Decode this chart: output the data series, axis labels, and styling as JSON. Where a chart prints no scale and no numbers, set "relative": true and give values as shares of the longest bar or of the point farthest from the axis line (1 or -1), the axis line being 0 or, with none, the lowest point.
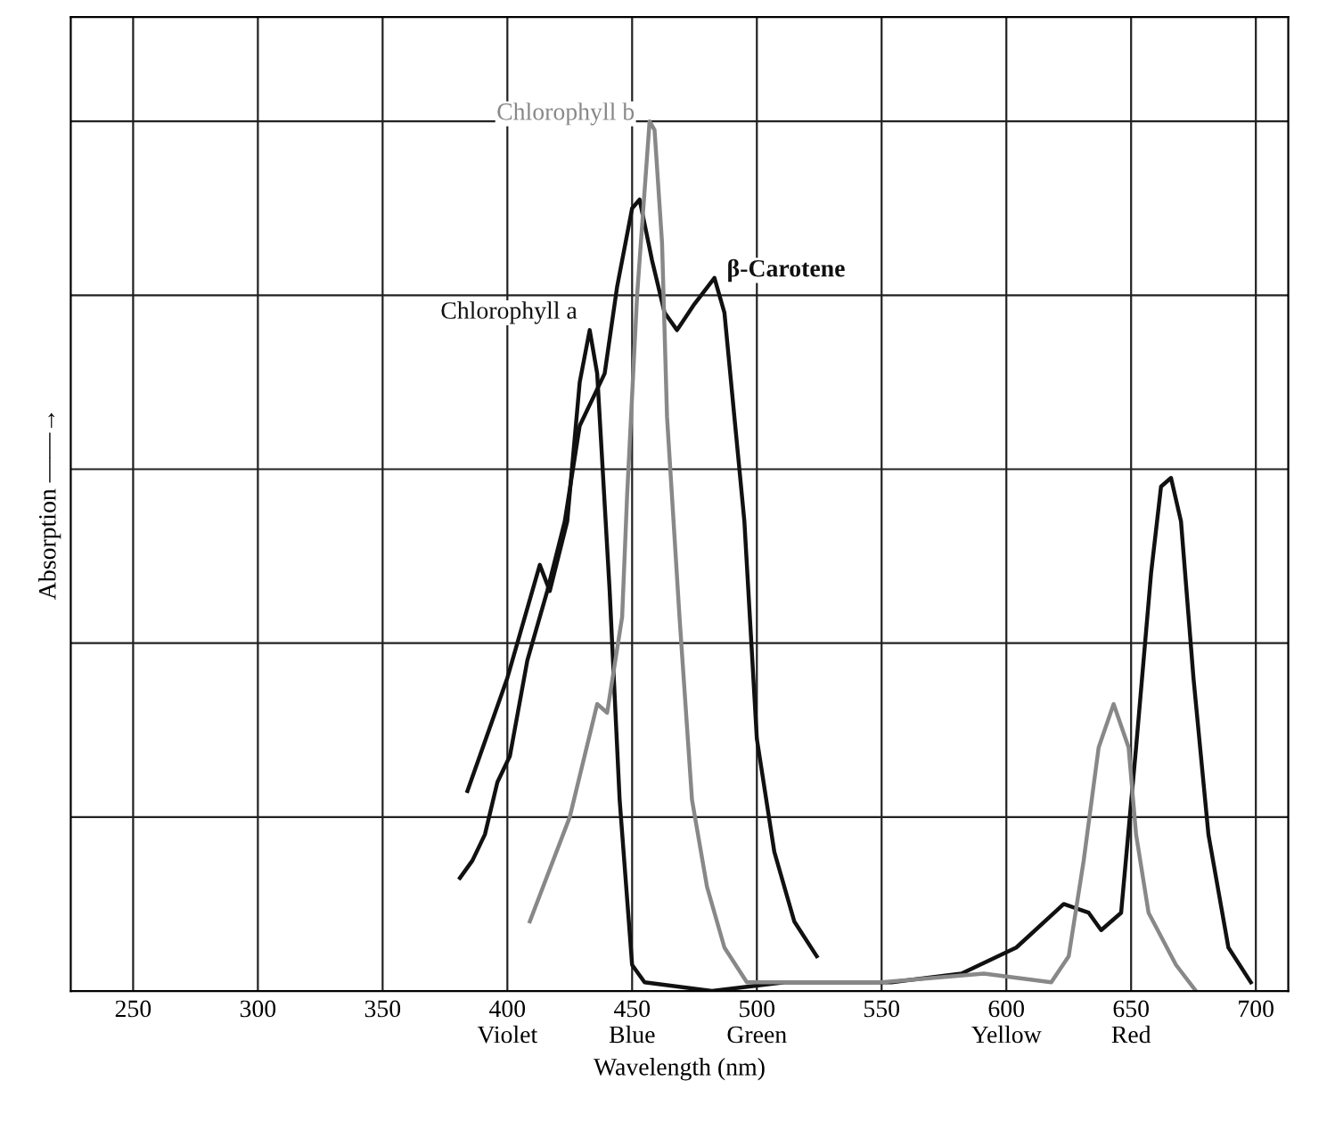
{
  "chart_data": {
    "type": "line",
    "relative": true,
    "xlabel": "Wavelength (nm)",
    "ylabel": "Absorption ——→",
    "xlim": [
      225,
      713
    ],
    "xticks": [
      250,
      300,
      350,
      {
        "value": 400,
        "label": "400\nViolet"
      },
      {
        "value": 450,
        "label": "450\nBlue"
      },
      {
        "value": 500,
        "label": "500\nGreen"
      },
      550,
      {
        "value": 600,
        "label": "600\nYellow"
      },
      {
        "value": 650,
        "label": "650\nRed"
      },
      700
    ],
    "grid": true,
    "legend": false,
    "tick_labels": "x",
    "line_style": "solid",
    "marker": "none",
    "series": [
      {
        "name": "Chlorophyll a",
        "color": "#111111",
        "x": [
          384,
          400,
          413,
          417,
          424,
          429,
          433,
          436,
          441,
          445,
          450,
          455,
          482,
          511,
          554,
          582,
          604,
          623,
          633,
          638,
          646,
          652,
          658,
          662,
          666,
          670,
          675,
          681,
          689,
          698
        ],
        "values": [
          0.23,
          0.36,
          0.49,
          0.46,
          0.54,
          0.7,
          0.76,
          0.71,
          0.46,
          0.22,
          0.03,
          0.01,
          0.0,
          0.01,
          0.01,
          0.02,
          0.05,
          0.1,
          0.09,
          0.07,
          0.09,
          0.28,
          0.48,
          0.58,
          0.59,
          0.54,
          0.36,
          0.18,
          0.05,
          0.01
        ]
      },
      {
        "name": "β-Carotene",
        "color": "#111111",
        "x": [
          381,
          386,
          391,
          396,
          401,
          408,
          416,
          423,
          429,
          439,
          444,
          450,
          453,
          458,
          463,
          468,
          475,
          483,
          487,
          491,
          495,
          500,
          507,
          515,
          524
        ],
        "values": [
          0.13,
          0.15,
          0.18,
          0.24,
          0.27,
          0.38,
          0.46,
          0.54,
          0.65,
          0.71,
          0.81,
          0.9,
          0.91,
          0.84,
          0.78,
          0.76,
          0.79,
          0.82,
          0.78,
          0.66,
          0.54,
          0.29,
          0.16,
          0.08,
          0.04
        ]
      },
      {
        "name": "Chlorophyll b",
        "color": "#888888",
        "x": [
          409,
          425,
          436,
          440,
          446,
          448,
          452,
          457,
          459,
          462,
          464,
          469,
          474,
          480,
          487,
          496,
          520,
          550,
          591,
          618,
          625,
          631,
          637,
          643,
          649,
          652,
          657,
          668,
          676
        ],
        "values": [
          0.08,
          0.2,
          0.33,
          0.32,
          0.43,
          0.57,
          0.8,
          1.0,
          0.99,
          0.86,
          0.66,
          0.43,
          0.22,
          0.12,
          0.05,
          0.01,
          0.01,
          0.01,
          0.02,
          0.01,
          0.04,
          0.15,
          0.28,
          0.33,
          0.28,
          0.18,
          0.09,
          0.03,
          0.0
        ]
      }
    ]
  }
}
